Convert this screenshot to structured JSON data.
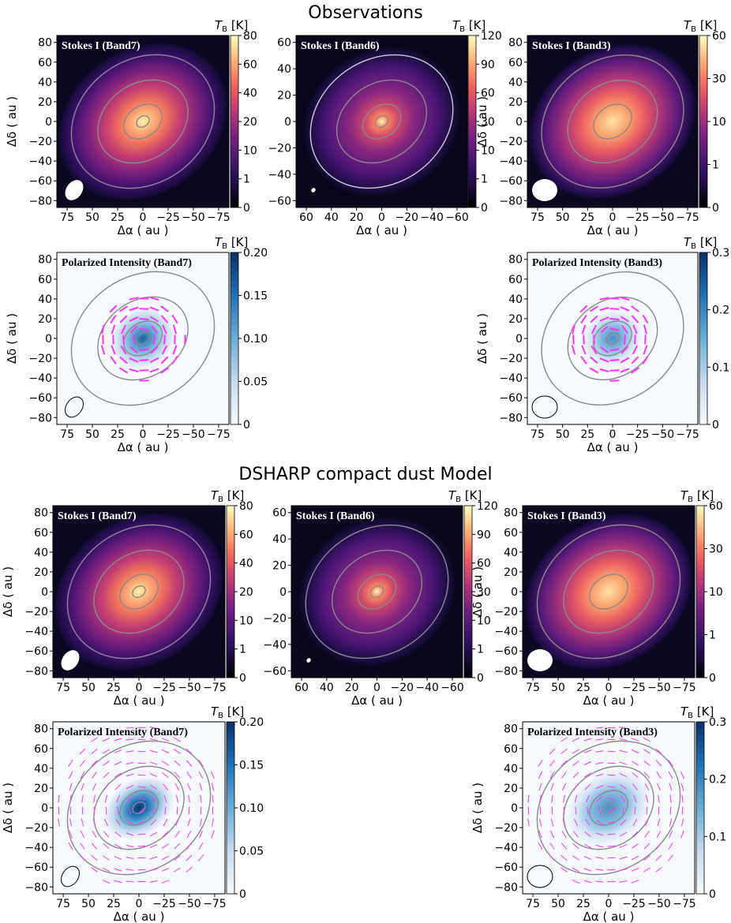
{
  "titles": {
    "observations": "Observations",
    "model": "DSHARP compact dust Model"
  },
  "axes": {
    "xlabel": "Δα ( au )",
    "ylabel": "Δδ ( au )",
    "cbar_label": "T",
    "cbar_sub": "B",
    "cbar_unit": " [K]"
  },
  "colors": {
    "contour": "#8a8a8a",
    "vector": "#ff33ff",
    "beam": "#ffffff"
  },
  "panels": [
    {
      "id": "obs-b7-i",
      "title": "Stokes I (Band7)",
      "kind": "intensity",
      "band": "Band7",
      "model": false,
      "xticks": [
        "75",
        "50",
        "25",
        "0",
        "−25",
        "−50",
        "−75"
      ],
      "yticks": [
        "80",
        "60",
        "40",
        "20",
        "0",
        "−20",
        "−40",
        "−60",
        "−80"
      ],
      "cbar_ticks": [
        "80",
        "60",
        "40",
        "20",
        "10",
        "1",
        "0"
      ]
    },
    {
      "id": "obs-b6-i",
      "title": "Stokes I (Band6)",
      "kind": "intensity",
      "band": "Band6",
      "model": false,
      "xticks": [
        "60",
        "40",
        "20",
        "0",
        "−20",
        "−40",
        "−60"
      ],
      "yticks": [
        "60",
        "40",
        "20",
        "0",
        "−20",
        "−40",
        "−60"
      ],
      "cbar_ticks": [
        "120",
        "90",
        "60",
        "30",
        "10",
        "1",
        "0"
      ]
    },
    {
      "id": "obs-b3-i",
      "title": "Stokes I (Band3)",
      "kind": "intensity",
      "band": "Band3",
      "model": false,
      "xticks": [
        "75",
        "50",
        "25",
        "0",
        "−25",
        "−50",
        "−75"
      ],
      "yticks": [
        "80",
        "60",
        "40",
        "20",
        "0",
        "−20",
        "−40",
        "−60",
        "−80"
      ],
      "cbar_ticks": [
        "60",
        "30",
        "10",
        "1",
        "0"
      ]
    },
    {
      "id": "obs-b7-p",
      "title": "Polarized Intensity (Band7)",
      "kind": "polarized",
      "band": "Band7",
      "model": false,
      "xticks": [
        "75",
        "50",
        "25",
        "0",
        "−25",
        "−50",
        "−75"
      ],
      "yticks": [
        "80",
        "60",
        "40",
        "20",
        "0",
        "−20",
        "−40",
        "−60",
        "−80"
      ],
      "cbar_ticks": [
        "0.20",
        "0.15",
        "0.10",
        "0.05",
        "0"
      ]
    },
    {
      "id": "obs-b3-p",
      "title": "Polarized Intensity (Band3)",
      "kind": "polarized",
      "band": "Band3",
      "model": false,
      "xticks": [
        "75",
        "50",
        "25",
        "0",
        "−25",
        "−50",
        "−75"
      ],
      "yticks": [
        "80",
        "60",
        "40",
        "20",
        "0",
        "−20",
        "−40",
        "−60",
        "−80"
      ],
      "cbar_ticks": [
        "0.3",
        "0.2",
        "0.1",
        "0"
      ]
    },
    {
      "id": "mod-b7-i",
      "title": "Stokes I (Band7)",
      "kind": "intensity",
      "band": "Band7",
      "model": true,
      "xticks": [
        "75",
        "50",
        "25",
        "0",
        "−25",
        "−50",
        "−75"
      ],
      "yticks": [
        "80",
        "60",
        "40",
        "20",
        "0",
        "−20",
        "−40",
        "−60",
        "−80"
      ],
      "cbar_ticks": [
        "80",
        "60",
        "40",
        "20",
        "10",
        "1",
        "0"
      ]
    },
    {
      "id": "mod-b6-i",
      "title": "Stokes I (Band6)",
      "kind": "intensity",
      "band": "Band6",
      "model": true,
      "xticks": [
        "60",
        "40",
        "20",
        "0",
        "−20",
        "−40",
        "−60"
      ],
      "yticks": [
        "60",
        "40",
        "20",
        "0",
        "−20",
        "−40",
        "−60"
      ],
      "cbar_ticks": [
        "120",
        "90",
        "60",
        "30",
        "10",
        "1",
        "0"
      ]
    },
    {
      "id": "mod-b3-i",
      "title": "Stokes I (Band3)",
      "kind": "intensity",
      "band": "Band3",
      "model": true,
      "xticks": [
        "75",
        "50",
        "25",
        "0",
        "−25",
        "−50",
        "−75"
      ],
      "yticks": [
        "80",
        "60",
        "40",
        "20",
        "0",
        "−20",
        "−40",
        "−60",
        "−80"
      ],
      "cbar_ticks": [
        "60",
        "30",
        "10",
        "1",
        "0"
      ]
    },
    {
      "id": "mod-b7-p",
      "title": "Polarized Intensity (Band7)",
      "kind": "polarized",
      "band": "Band7",
      "model": true,
      "xticks": [
        "75",
        "50",
        "25",
        "0",
        "−25",
        "−50",
        "−75"
      ],
      "yticks": [
        "80",
        "60",
        "40",
        "20",
        "0",
        "−20",
        "−40",
        "−60",
        "−80"
      ],
      "cbar_ticks": [
        "0.20",
        "0.15",
        "0.10",
        "0.05",
        "0"
      ]
    },
    {
      "id": "mod-b3-p",
      "title": "Polarized Intensity (Band3)",
      "kind": "polarized",
      "band": "Band3",
      "model": true,
      "xticks": [
        "75",
        "50",
        "25",
        "0",
        "−25",
        "−50",
        "−75"
      ],
      "yticks": [
        "80",
        "60",
        "40",
        "20",
        "0",
        "−20",
        "−40",
        "−60",
        "−80"
      ],
      "cbar_ticks": [
        "0.3",
        "0.2",
        "0.1",
        "0"
      ]
    }
  ]
}
